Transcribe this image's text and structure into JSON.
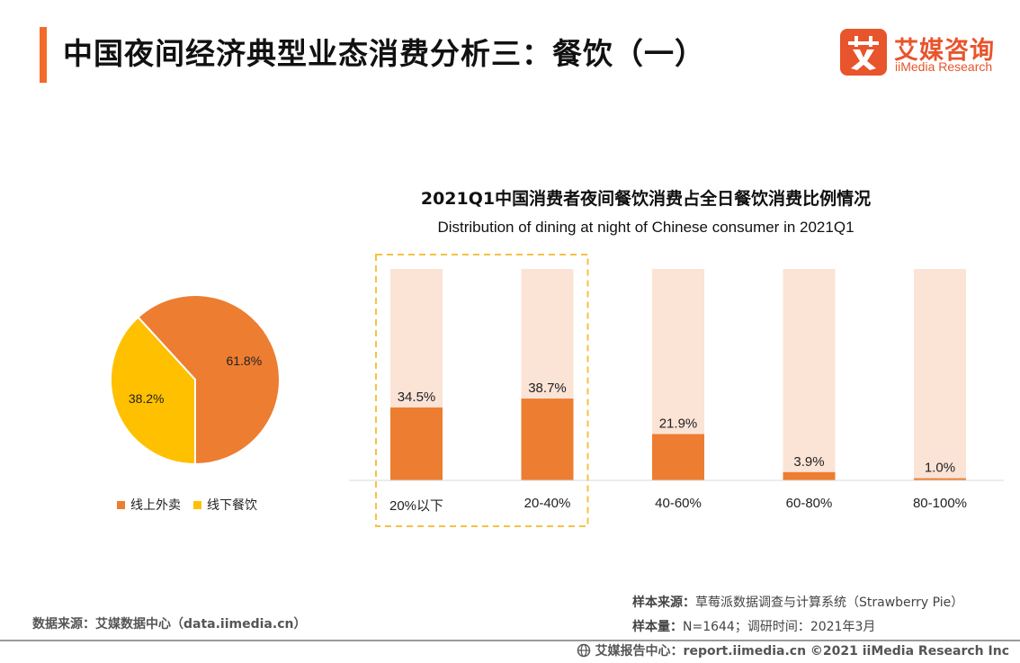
{
  "header": {
    "title": "中国夜间经济典型业态消费分析三：餐饮（一）",
    "logo_cn": "艾媒咨询",
    "logo_en": "iiMedia Research",
    "brand_color": "#e8542c",
    "accent_color": "#f26b2b"
  },
  "chart_data": [
    {
      "type": "pie",
      "slices": [
        {
          "label": "线上外卖",
          "value": 61.8,
          "display": "61.8%",
          "color": "#ed7d31"
        },
        {
          "label": "线下餐饮",
          "value": 38.2,
          "display": "38.2%",
          "color": "#ffc000"
        }
      ],
      "legend": "bottom"
    },
    {
      "type": "bar",
      "title": "2021Q1中国消费者夜间餐饮消费占全日餐饮消费比例情况",
      "subtitle": "Distribution of dining at night  of Chinese consumer in 2021Q1",
      "categories": [
        "20%以下",
        "20-40%",
        "40-60%",
        "60-80%",
        "80-100%"
      ],
      "values": [
        34.5,
        38.7,
        21.9,
        3.9,
        1.0
      ],
      "labels": [
        "34.5%",
        "38.7%",
        "21.9%",
        "3.9%",
        "1.0%"
      ],
      "ylim": [
        0,
        100
      ],
      "bar_color": "#ed7d31",
      "background_color": "#fbe3d6",
      "highlighted_categories": [
        "20%以下",
        "20-40%"
      ],
      "highlight_color": "#f5c242"
    }
  ],
  "sources": {
    "left": "数据来源：艾媒数据中心（data.iimedia.cn）",
    "sample_label": "样本来源：",
    "sample_value": "草莓派数据调查与计算系统（Strawberry Pie）",
    "size_label": "样本量：",
    "size_value": "N=1644；调研时间：2021年3月"
  },
  "footer": {
    "text": "艾媒报告中心：report.iimedia.cn   ©2021  iiMedia Research  Inc"
  }
}
